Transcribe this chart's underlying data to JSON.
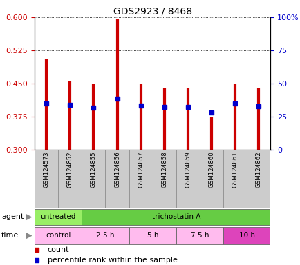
{
  "title": "GDS2923 / 8468",
  "samples": [
    "GSM124573",
    "GSM124852",
    "GSM124855",
    "GSM124856",
    "GSM124857",
    "GSM124858",
    "GSM124859",
    "GSM124860",
    "GSM124861",
    "GSM124862"
  ],
  "bar_bottoms": [
    0.3,
    0.3,
    0.3,
    0.3,
    0.3,
    0.3,
    0.3,
    0.3,
    0.3,
    0.3
  ],
  "bar_tops": [
    0.505,
    0.455,
    0.45,
    0.597,
    0.45,
    0.44,
    0.44,
    0.375,
    0.45,
    0.44
  ],
  "percentile_values": [
    0.405,
    0.402,
    0.395,
    0.415,
    0.4,
    0.397,
    0.397,
    0.385,
    0.405,
    0.398
  ],
  "bar_color": "#cc0000",
  "percentile_color": "#0000cc",
  "ylim_left": [
    0.3,
    0.6
  ],
  "ylim_right": [
    0,
    100
  ],
  "yticks_left": [
    0.3,
    0.375,
    0.45,
    0.525,
    0.6
  ],
  "yticks_right": [
    0,
    25,
    50,
    75,
    100
  ],
  "agent_labels": [
    {
      "label": "untreated",
      "start": 0,
      "end": 2
    },
    {
      "label": "trichostatin A",
      "start": 2,
      "end": 10
    }
  ],
  "agent_colors": [
    "#99ee66",
    "#66cc44"
  ],
  "time_labels": [
    {
      "label": "control",
      "start": 0,
      "end": 2
    },
    {
      "label": "2.5 h",
      "start": 2,
      "end": 4
    },
    {
      "label": "5 h",
      "start": 4,
      "end": 6
    },
    {
      "label": "7.5 h",
      "start": 6,
      "end": 8
    },
    {
      "label": "10 h",
      "start": 8,
      "end": 10
    }
  ],
  "time_colors": [
    "#ffbbee",
    "#ffbbee",
    "#ffbbee",
    "#ffbbee",
    "#dd44bb"
  ],
  "bar_color_legend": "#cc0000",
  "percentile_color_legend": "#0000cc",
  "tick_label_color_left": "#cc0000",
  "tick_label_color_right": "#0000cc",
  "sample_box_color": "#cccccc",
  "label_fontsize": 7.5,
  "tick_fontsize": 8
}
